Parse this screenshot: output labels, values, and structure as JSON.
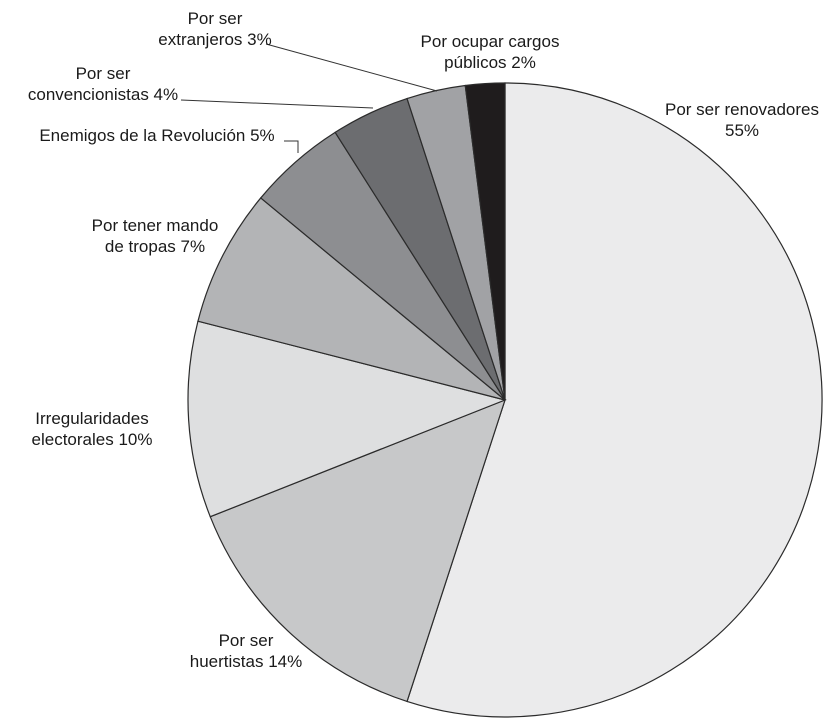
{
  "chart_data": {
    "type": "pie",
    "title": "",
    "slices": [
      {
        "lines": [
          "Por ser renovadores",
          "55%"
        ],
        "value": 55,
        "color": "#ebebec"
      },
      {
        "lines": [
          "Por ser",
          "huertistas 14%"
        ],
        "value": 14,
        "color": "#c7c8c9"
      },
      {
        "lines": [
          "Irregularidades",
          "electorales 10%"
        ],
        "value": 10,
        "color": "#dedfe0"
      },
      {
        "lines": [
          "Por tener mando",
          "de tropas 7%"
        ],
        "value": 7,
        "color": "#b3b4b6"
      },
      {
        "lines": [
          "Enemigos de la Revolución 5%"
        ],
        "value": 5,
        "color": "#8d8e91"
      },
      {
        "lines": [
          "Por ser",
          "convencionistas 4%"
        ],
        "value": 4,
        "color": "#6c6d70"
      },
      {
        "lines": [
          "Por ser",
          "extranjeros 3%"
        ],
        "value": 3,
        "color": "#a1a2a5"
      },
      {
        "lines": [
          "Por ocupar cargos",
          "públicos 2%"
        ],
        "value": 2,
        "color": "#1f1c1d"
      }
    ]
  }
}
